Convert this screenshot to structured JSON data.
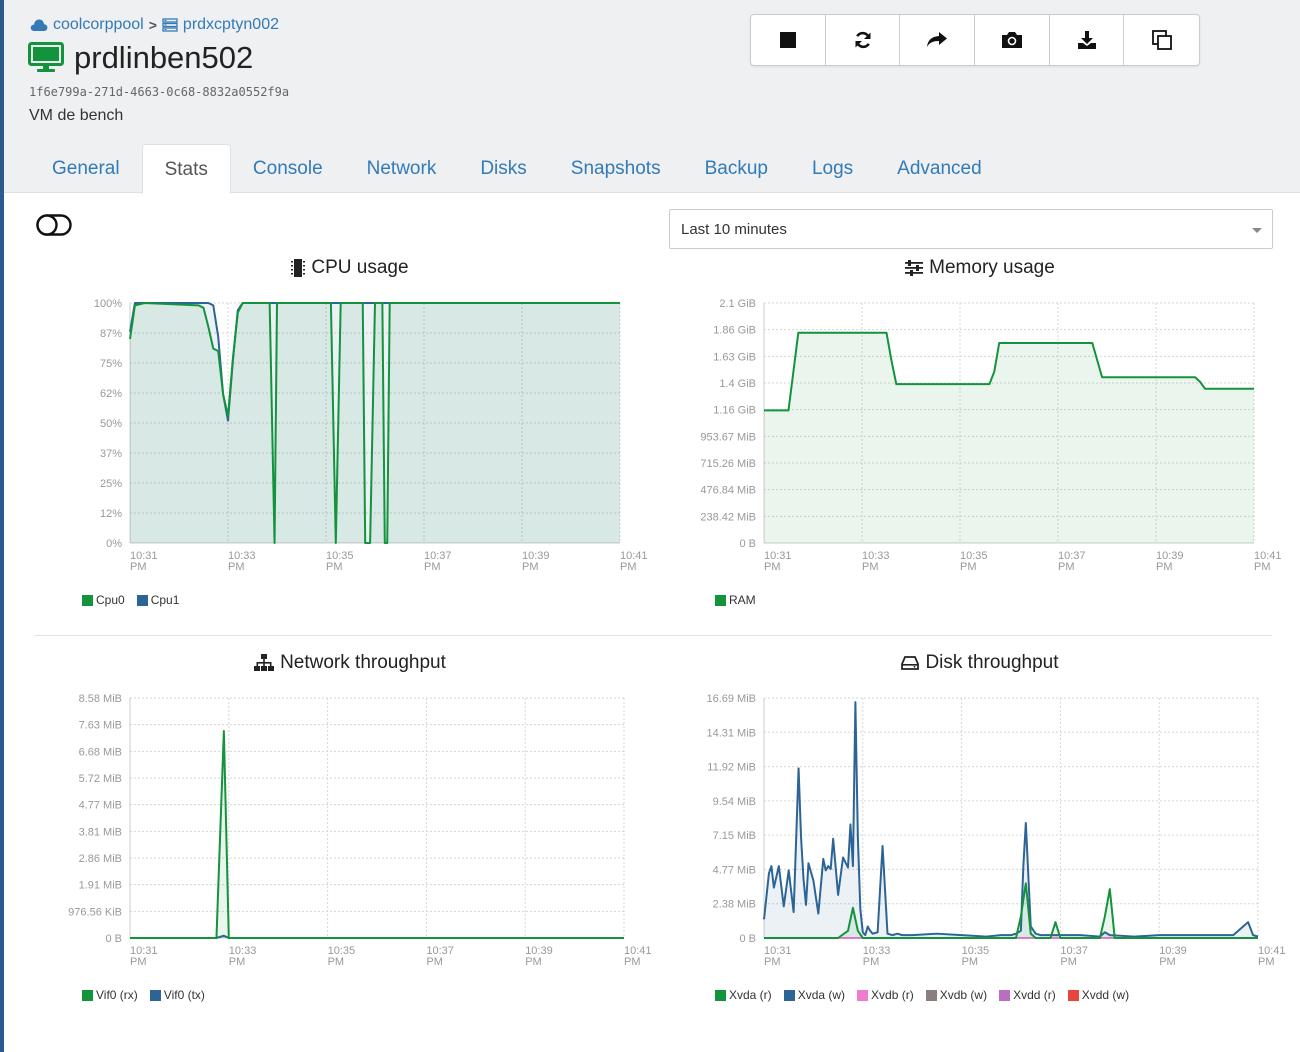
{
  "breadcrumb": {
    "pool": "coolcorppool",
    "host": "prdxcptyn002"
  },
  "vm": {
    "name": "prdlinben502",
    "uuid": "1f6e799a-271d-4663-0c68-8832a0552f9a",
    "description": "VM de bench"
  },
  "toolbar": {
    "icons": [
      "stop-icon",
      "reboot-icon",
      "migrate-icon",
      "snapshot-icon",
      "export-icon",
      "copy-icon"
    ]
  },
  "tabs": [
    "General",
    "Stats",
    "Console",
    "Network",
    "Disks",
    "Snapshots",
    "Backup",
    "Logs",
    "Advanced"
  ],
  "active_tab": "Stats",
  "granularity": {
    "selected": "Last 10 minutes"
  },
  "colors": {
    "green": "#13933b",
    "blue": "#2d6496",
    "pink": "#f07ccf",
    "gray": "#8a7e7e",
    "purple": "#b96fc1",
    "red": "#e8453c"
  },
  "chart_data": [
    {
      "id": "cpu",
      "type": "area",
      "title": "CPU usage",
      "y_ticks": [
        "100%",
        "87%",
        "75%",
        "62%",
        "50%",
        "37%",
        "25%",
        "12%",
        "0%"
      ],
      "x_ticks": [
        [
          "10:31",
          "PM"
        ],
        [
          "10:33",
          "PM"
        ],
        [
          "10:35",
          "PM"
        ],
        [
          "10:37",
          "PM"
        ],
        [
          "10:39",
          "PM"
        ],
        [
          "10:41",
          "PM"
        ]
      ],
      "ylim": [
        0,
        100
      ],
      "x_minutes": [
        0,
        10
      ],
      "series": [
        {
          "name": "Cpu0",
          "color": "green",
          "x": [
            0,
            0.1,
            0.3,
            1.4,
            1.5,
            1.6,
            1.7,
            1.8,
            1.9,
            2.0,
            2.1,
            2.2,
            2.3,
            2.35,
            2.4,
            2.45,
            2.5,
            2.6,
            2.7,
            2.8,
            2.85,
            2.9,
            2.95,
            3.0,
            4.0,
            4.05,
            4.1,
            4.15,
            4.2,
            4.3,
            4.4,
            4.5,
            4.55,
            4.6,
            4.65,
            4.7,
            4.75,
            4.8,
            4.9,
            5.0,
            5.05,
            5.1,
            5.15,
            5.2,
            5.25,
            5.3,
            5.4,
            6.0,
            7.0,
            8.0,
            9.0,
            10.0
          ],
          "y": [
            85,
            99,
            100,
            99,
            98,
            90,
            81,
            80,
            62,
            53,
            77,
            96,
            100,
            100,
            100,
            100,
            100,
            100,
            100,
            100,
            100,
            50,
            0,
            100,
            100,
            100,
            100,
            50,
            0,
            100,
            100,
            100,
            100,
            100,
            100,
            100,
            100,
            0,
            0,
            100,
            100,
            100,
            100,
            0,
            0,
            100,
            100,
            100,
            100,
            100,
            100,
            100
          ]
        },
        {
          "name": "Cpu1",
          "color": "blue",
          "x": [
            0,
            0.1,
            0.3,
            1.4,
            1.5,
            1.6,
            1.7,
            1.8,
            1.9,
            2.0,
            2.1,
            2.2,
            2.3,
            3.0,
            4.0,
            5.0,
            6.0,
            7.0,
            8.0,
            9.0,
            10.0
          ],
          "y": [
            88,
            100,
            100,
            100,
            100,
            100,
            99,
            86,
            62,
            51,
            76,
            97,
            100,
            100,
            100,
            100,
            100,
            100,
            100,
            100,
            100
          ]
        }
      ]
    },
    {
      "id": "memory",
      "type": "area",
      "title": "Memory usage",
      "y_ticks": [
        "2.1 GiB",
        "1.86 GiB",
        "1.63 GiB",
        "1.4 GiB",
        "1.16 GiB",
        "953.67 MiB",
        "715.26 MiB",
        "476.84 MiB",
        "238.42 MiB",
        "0 B"
      ],
      "x_ticks": [
        [
          "10:31",
          "PM"
        ],
        [
          "10:33",
          "PM"
        ],
        [
          "10:35",
          "PM"
        ],
        [
          "10:37",
          "PM"
        ],
        [
          "10:39",
          "PM"
        ],
        [
          "10:41",
          "PM"
        ]
      ],
      "ylim": [
        0,
        2.1
      ],
      "x_minutes": [
        0,
        10
      ],
      "series": [
        {
          "name": "RAM",
          "color": "green",
          "x": [
            0,
            0.5,
            0.6,
            0.7,
            2.5,
            2.6,
            2.7,
            4.6,
            4.7,
            4.8,
            6.7,
            6.8,
            6.9,
            8.8,
            8.9,
            9.0,
            10.0
          ],
          "y": [
            1.16,
            1.16,
            1.5,
            1.84,
            1.84,
            1.6,
            1.39,
            1.39,
            1.5,
            1.75,
            1.75,
            1.6,
            1.45,
            1.45,
            1.41,
            1.35,
            1.35
          ]
        }
      ]
    },
    {
      "id": "network",
      "type": "area",
      "title": "Network throughput",
      "y_ticks": [
        "8.58 MiB",
        "7.63 MiB",
        "6.68 MiB",
        "5.72 MiB",
        "4.77 MiB",
        "3.81 MiB",
        "2.86 MiB",
        "1.91 MiB",
        "976.56 KiB",
        "0 B"
      ],
      "x_ticks": [
        [
          "10:31",
          "PM"
        ],
        [
          "10:33",
          "PM"
        ],
        [
          "10:35",
          "PM"
        ],
        [
          "10:37",
          "PM"
        ],
        [
          "10:39",
          "PM"
        ],
        [
          "10:41",
          "PM"
        ]
      ],
      "ylim": [
        0,
        8.58
      ],
      "x_minutes": [
        0,
        10
      ],
      "series": [
        {
          "name": "Vif0 (rx)",
          "color": "green",
          "x": [
            0,
            1.75,
            1.9,
            2.0,
            10.0
          ],
          "y": [
            0,
            0,
            7.4,
            0,
            0
          ]
        },
        {
          "name": "Vif0 (tx)",
          "color": "blue",
          "x": [
            0,
            1.75,
            1.9,
            2.0,
            10.0
          ],
          "y": [
            0,
            0,
            0.08,
            0,
            0
          ]
        }
      ]
    },
    {
      "id": "disk",
      "type": "area",
      "title": "Disk throughput",
      "y_ticks": [
        "16.69 MiB",
        "14.31 MiB",
        "11.92 MiB",
        "9.54 MiB",
        "7.15 MiB",
        "4.77 MiB",
        "2.38 MiB",
        "0 B"
      ],
      "x_ticks": [
        [
          "10:31",
          "PM"
        ],
        [
          "10:33",
          "PM"
        ],
        [
          "10:35",
          "PM"
        ],
        [
          "10:37",
          "PM"
        ],
        [
          "10:39",
          "PM"
        ],
        [
          "10:41",
          "PM"
        ]
      ],
      "ylim": [
        0,
        16.69
      ],
      "x_minutes": [
        0,
        10
      ],
      "series": [
        {
          "name": "Xvda (r)",
          "color": "green",
          "x": [
            0,
            1.5,
            1.7,
            1.8,
            1.9,
            2.0,
            2.5,
            5.1,
            5.2,
            5.3,
            5.4,
            5.5,
            5.8,
            5.9,
            6.0,
            6.8,
            6.9,
            7.0,
            7.1,
            10.0
          ],
          "y": [
            0,
            0,
            0.5,
            2.1,
            0.5,
            0,
            0,
            0,
            1.5,
            3.8,
            0.3,
            0,
            0,
            1.1,
            0,
            0,
            1.5,
            3.4,
            0,
            0
          ]
        },
        {
          "name": "Xvda (w)",
          "color": "blue",
          "x": [
            0,
            0.1,
            0.15,
            0.2,
            0.3,
            0.4,
            0.5,
            0.6,
            0.7,
            0.75,
            0.8,
            0.85,
            0.9,
            1.0,
            1.1,
            1.2,
            1.25,
            1.3,
            1.35,
            1.4,
            1.5,
            1.6,
            1.7,
            1.75,
            1.8,
            1.85,
            1.9,
            1.95,
            2.0,
            2.05,
            2.1,
            2.15,
            2.2,
            2.3,
            2.4,
            2.5,
            2.6,
            2.7,
            2.8,
            3.0,
            3.5,
            4.0,
            4.5,
            4.8,
            5.0,
            5.1,
            5.2,
            5.25,
            5.3,
            5.4,
            5.5,
            5.6,
            6.0,
            6.4,
            6.8,
            6.9,
            7.0,
            7.5,
            8.0,
            8.5,
            9.0,
            9.5,
            9.8,
            9.9,
            10.0
          ],
          "y": [
            1.3,
            4.5,
            5.0,
            3.5,
            5.0,
            2.2,
            4.7,
            1.8,
            11.8,
            7.0,
            4.1,
            2.3,
            5.2,
            4.0,
            1.7,
            5.5,
            4.7,
            5.0,
            4.8,
            6.9,
            3.0,
            5.6,
            4.9,
            7.9,
            5.0,
            16.4,
            7.0,
            2.0,
            0.4,
            0.2,
            0.8,
            0.5,
            0.3,
            0.4,
            6.4,
            0.3,
            0.2,
            0.3,
            0.2,
            0.2,
            0.3,
            0.2,
            0.1,
            0.2,
            0.2,
            0.3,
            0.5,
            5.0,
            8.0,
            0.8,
            0.3,
            0.2,
            0.2,
            0.2,
            0.1,
            0.4,
            0.2,
            0.1,
            0.2,
            0.2,
            0.2,
            0.2,
            1.1,
            0.2,
            0.1
          ]
        },
        {
          "name": "Xvdb (r)",
          "color": "pink",
          "x": [
            0,
            10
          ],
          "y": [
            0,
            0
          ]
        },
        {
          "name": "Xvdb (w)",
          "color": "gray",
          "x": [
            0,
            10
          ],
          "y": [
            0,
            0
          ]
        },
        {
          "name": "Xvdd (r)",
          "color": "purple",
          "x": [
            0,
            10
          ],
          "y": [
            0,
            0
          ]
        },
        {
          "name": "Xvdd (w)",
          "color": "red",
          "x": [
            0,
            10
          ],
          "y": [
            0,
            0
          ]
        }
      ]
    }
  ]
}
